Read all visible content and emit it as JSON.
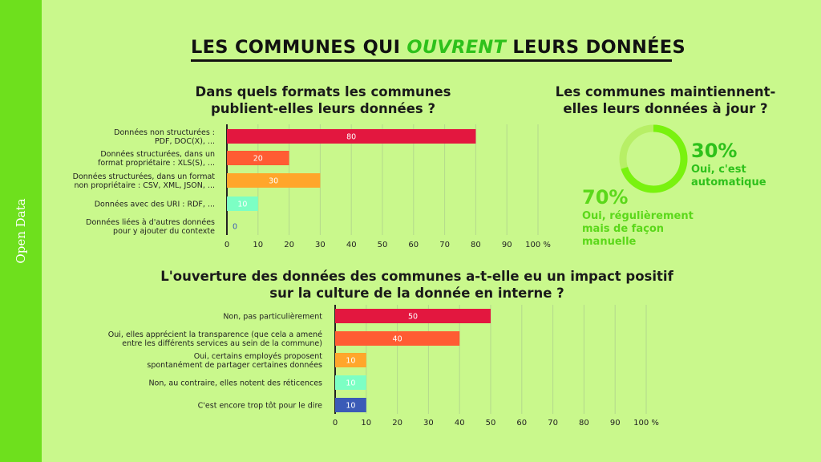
{
  "sidebar": {
    "label": "Open Data"
  },
  "title": {
    "before": "LES COMMUNES QUI ",
    "highlight": "OUVRENT",
    "after": " LEURS DONNÉES"
  },
  "colors": {
    "sidebar": "#6ee01d",
    "highlight": "#2ec11b",
    "pie_main": "#79f20f",
    "pie_light": "#b7ef66"
  },
  "chart_data": [
    {
      "type": "bar",
      "title_lines": [
        "Dans quels formats les communes",
        "publient-elles leurs données ?"
      ],
      "categories": [
        [
          "Données non structurées :",
          "PDF, DOC(X), ..."
        ],
        [
          "Données structurées, dans un",
          "format propriétaire : XLS(S), ..."
        ],
        [
          "Données structurées, dans un format",
          "non propriétaire : CSV, XML, JSON, ..."
        ],
        [
          "Données avec des URI : RDF, ..."
        ],
        [
          "Données liées à d'autres données",
          "pour y ajouter du contexte"
        ]
      ],
      "values": [
        80,
        20,
        30,
        10,
        0
      ],
      "value_labels": [
        "80",
        "20",
        "30",
        "10",
        "0"
      ],
      "colors": [
        "#e3173f",
        "#ff5c33",
        "#ffa62b",
        "#7cffc4",
        "#3b5bb7"
      ],
      "label_colors": [
        "#ffffff",
        "#ffffff",
        "#ffffff",
        "#ffffff",
        "#3b5bb7"
      ],
      "xlim": [
        0,
        100
      ],
      "xticks": [
        "0",
        "10",
        "20",
        "30",
        "40",
        "50",
        "60",
        "70",
        "80",
        "90",
        "100 %"
      ]
    },
    {
      "type": "pie",
      "title_lines": [
        "Les communes maintiennent-",
        "elles leurs données à jour ?"
      ],
      "slices": [
        {
          "pct": 30,
          "pct_label": "30%",
          "label_lines": [
            "Oui, c'est",
            "automatique"
          ],
          "color": "#79f20f"
        },
        {
          "pct": 70,
          "pct_label": "70%",
          "label_lines": [
            "Oui, régulièrement",
            "mais de façon",
            "manuelle"
          ],
          "color": "#79f20f"
        }
      ]
    },
    {
      "type": "bar",
      "title_lines": [
        "L'ouverture des données des communes a-t-elle eu un impact positif",
        "sur la culture de la donnée en interne ?"
      ],
      "categories": [
        [
          "Non, pas particulièrement"
        ],
        [
          "Oui, elles apprécient la transparence (que cela a amené",
          "entre les différents services au sein de la commune)"
        ],
        [
          "Oui, certains employés proposent",
          "spontanément de partager certaines données"
        ],
        [
          "Non, au contraire, elles notent des réticences"
        ],
        [
          "C'est encore trop tôt pour le dire"
        ]
      ],
      "values": [
        50,
        40,
        10,
        10,
        10
      ],
      "value_labels": [
        "50",
        "40",
        "10",
        "10",
        "10"
      ],
      "colors": [
        "#e3173f",
        "#ff5c33",
        "#ffa62b",
        "#7cffc4",
        "#3b5bb7"
      ],
      "label_colors": [
        "#ffffff",
        "#ffffff",
        "#ffffff",
        "#ffffff",
        "#ffffff"
      ],
      "xlim": [
        0,
        100
      ],
      "xticks": [
        "0",
        "10",
        "20",
        "30",
        "40",
        "50",
        "60",
        "70",
        "80",
        "90",
        "100 %"
      ]
    }
  ]
}
